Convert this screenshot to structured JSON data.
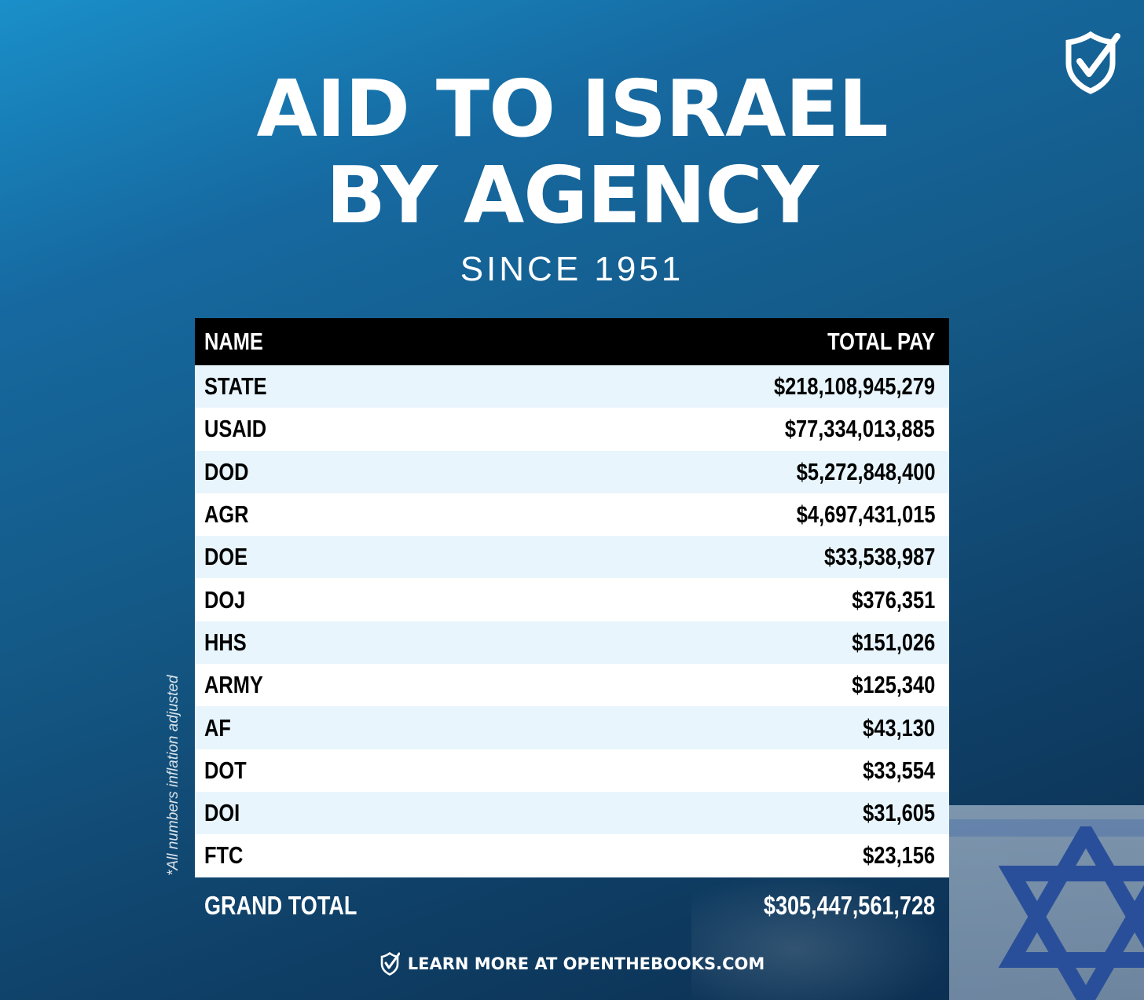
{
  "header": {
    "title_line1": "AID TO ISRAEL",
    "title_line2": "BY AGENCY",
    "subtitle": "SINCE 1951"
  },
  "note": "*All numbers inflation adjusted",
  "table": {
    "columns": [
      "NAME",
      "TOTAL PAY"
    ],
    "rows": [
      {
        "name": "STATE",
        "total": "$218,108,945,279"
      },
      {
        "name": "USAID",
        "total": "$77,334,013,885"
      },
      {
        "name": "DOD",
        "total": "$5,272,848,400"
      },
      {
        "name": "AGR",
        "total": "$4,697,431,015"
      },
      {
        "name": "DOE",
        "total": "$33,538,987"
      },
      {
        "name": "DOJ",
        "total": "$376,351"
      },
      {
        "name": "HHS",
        "total": "$151,026"
      },
      {
        "name": "ARMY",
        "total": "$125,340"
      },
      {
        "name": "AF",
        "total": "$43,130"
      },
      {
        "name": "DOT",
        "total": "$33,554"
      },
      {
        "name": "DOI",
        "total": "$31,605"
      },
      {
        "name": "FTC",
        "total": "$23,156"
      }
    ],
    "grand_total_label": "GRAND TOTAL",
    "grand_total_value": "$305,447,561,728"
  },
  "footer": {
    "text": "LEARN MORE AT OPENTHEBOOKS.COM"
  },
  "icons": [
    "shield-check-logo-icon",
    "star-of-david-icon",
    "shield-check-small-icon"
  ],
  "colors": {
    "background_top": "#1a8fc9",
    "background_bottom": "#0b2c4d",
    "header_row": "#000000",
    "row_tint": "#e8f5fc",
    "star": "#2a4f9a"
  }
}
